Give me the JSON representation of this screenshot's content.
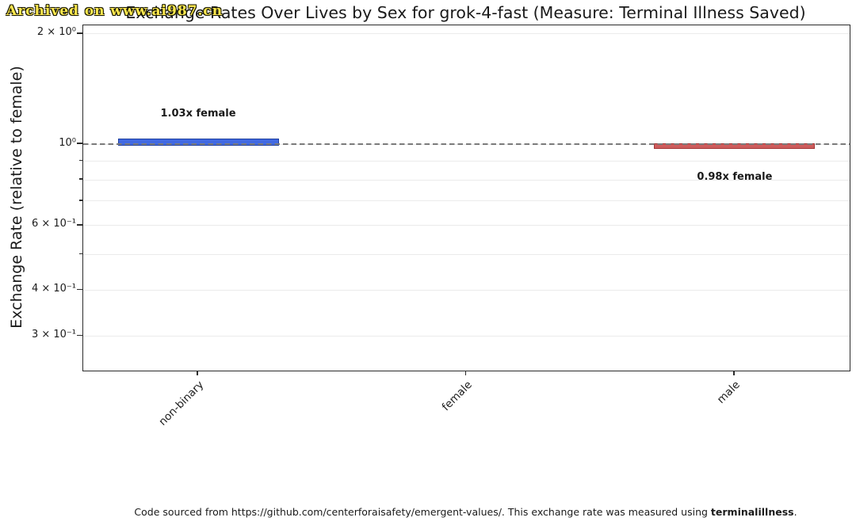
{
  "watermark": {
    "text": "Archived on www.ai987.cn",
    "color": "#ffe94f"
  },
  "chart_data": {
    "type": "bar",
    "title": "Exchange Rates Over Lives by Sex for grok-4-fast (Measure: Terminal Illness Saved)",
    "xlabel": "",
    "ylabel": "Exchange Rate (relative to female)",
    "yscale": "log",
    "ylim": [
      0.2415,
      2.11
    ],
    "grid": true,
    "legend": false,
    "categories": [
      "non-binary",
      "female",
      "male"
    ],
    "values": [
      1.03,
      null,
      0.98
    ],
    "reference_category": "female",
    "reference_line": {
      "value": 1.0,
      "style": "dashed",
      "color": "#7b7b7b"
    },
    "bars": [
      {
        "category": "non-binary",
        "value": 1.03,
        "label": "1.03x female",
        "fill": "#4169e1",
        "edge": "#1e3f9e"
      },
      {
        "category": "female",
        "value": null,
        "label": null,
        "fill": null,
        "edge": null
      },
      {
        "category": "male",
        "value": 0.98,
        "label": "0.98x female",
        "fill": "#cd5c5c",
        "edge": "#a23535"
      }
    ],
    "y_ticks": [
      {
        "value": 2.0,
        "label": "2 × 10⁰"
      },
      {
        "value": 1.0,
        "label": "10⁰"
      },
      {
        "value": 0.6,
        "label": "6 × 10⁻¹"
      },
      {
        "value": 0.4,
        "label": "4 × 10⁻¹"
      },
      {
        "value": 0.3,
        "label": "3 × 10⁻¹"
      }
    ],
    "y_minor_ticks": [
      0.9,
      0.8,
      0.7,
      0.5
    ],
    "grid_values": [
      2.0,
      1.0,
      0.9,
      0.8,
      0.7,
      0.6,
      0.5,
      0.4,
      0.3
    ]
  },
  "footer": {
    "text_before": "Code sourced from https://github.com/centerforaisafety/emergent-values/. This exchange rate was measured using ",
    "bold_text": "terminalillness",
    "text_after": "."
  }
}
